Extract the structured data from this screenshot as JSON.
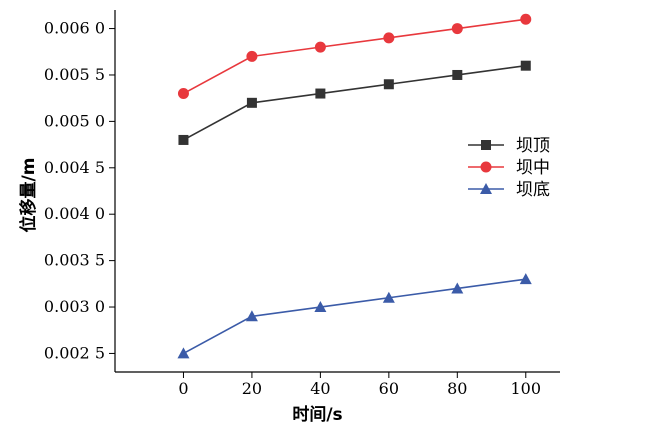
{
  "chart_data": {
    "type": "line",
    "xlabel": "时间/s",
    "ylabel": "位移量/m",
    "x": [
      0,
      20,
      40,
      60,
      80,
      100
    ],
    "x_ticks": [
      "0",
      "20",
      "40",
      "60",
      "80",
      "100"
    ],
    "y_ticks": [
      0.0025,
      0.003,
      0.0035,
      0.004,
      0.0045,
      0.005,
      0.0055,
      0.006
    ],
    "y_tick_labels": [
      "0.002 5",
      "0.003 0",
      "0.003 5",
      "0.004 0",
      "0.004 5",
      "0.005 0",
      "0.005 5",
      "0.006 0"
    ],
    "xlim": [
      -20,
      110
    ],
    "ylim": [
      0.0023,
      0.0062
    ],
    "legend_position": "right",
    "grid": false,
    "series": [
      {
        "name": "坝顶",
        "values": [
          0.0048,
          0.0052,
          0.0053,
          0.0054,
          0.0055,
          0.0056
        ],
        "color": "#333333",
        "marker": "square"
      },
      {
        "name": "坝中",
        "values": [
          0.0053,
          0.0057,
          0.0058,
          0.0059,
          0.006,
          0.0061
        ],
        "color": "#e8383d",
        "marker": "circle"
      },
      {
        "name": "坝底",
        "values": [
          0.0025,
          0.0029,
          0.003,
          0.0031,
          0.0032,
          0.0033
        ],
        "color": "#3b5ba8",
        "marker": "triangle"
      }
    ]
  }
}
